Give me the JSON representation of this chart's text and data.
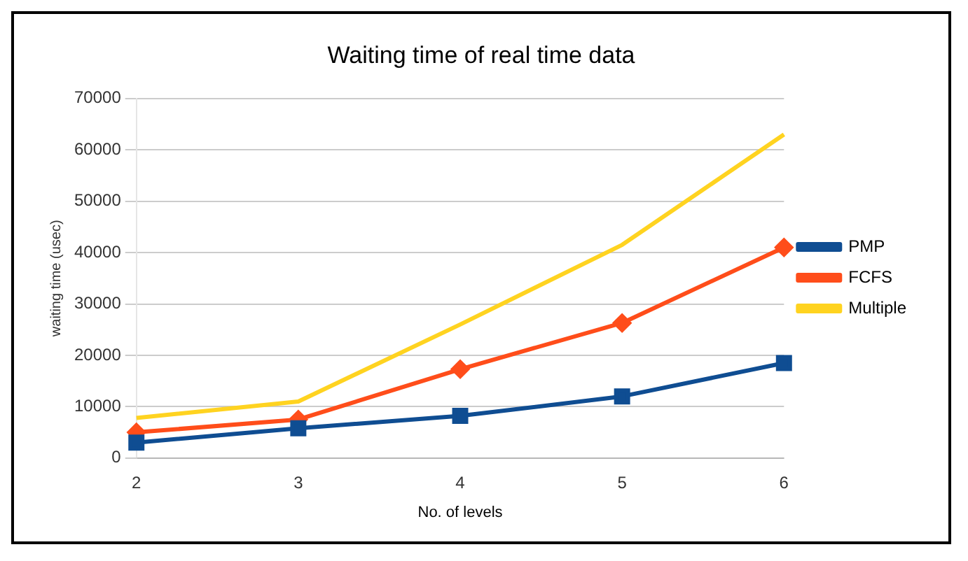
{
  "chart_data": {
    "type": "line",
    "title": "Waiting time of real time data",
    "xlabel": "No. of levels",
    "ylabel": "waiting time (usec)",
    "categories": [
      "2",
      "3",
      "4",
      "5",
      "6"
    ],
    "series": [
      {
        "name": "PMP",
        "color": "#0f4d92",
        "marker": "square",
        "values": [
          3000,
          5800,
          8200,
          12000,
          18500
        ]
      },
      {
        "name": "FCFS",
        "color": "#ff4d1a",
        "marker": "diamond",
        "values": [
          5000,
          7500,
          17300,
          26300,
          41000
        ]
      },
      {
        "name": "Multiple",
        "color": "#ffd320",
        "marker": "none",
        "values": [
          7800,
          11000,
          26000,
          41500,
          63000
        ]
      }
    ],
    "ylim": [
      0,
      70000
    ],
    "yticks": [
      0,
      10000,
      20000,
      30000,
      40000,
      50000,
      60000,
      70000
    ],
    "grid": "y",
    "legend": "right"
  }
}
